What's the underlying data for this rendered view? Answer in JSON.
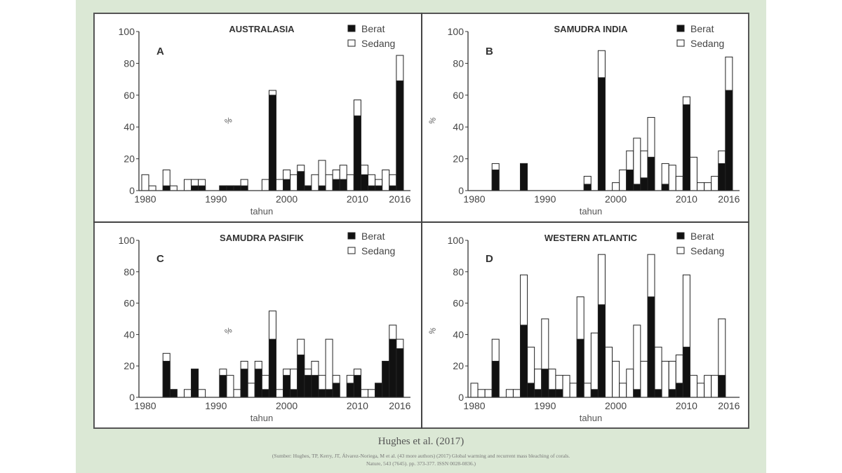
{
  "colors": {
    "severe": "#111111",
    "moderate": "#ffffff",
    "background": "#dbe8d5"
  },
  "caption": "Hughes et al. (2017)",
  "source_line1": "(Sumber: Hughes, TP, Kerry, JT, Álvarez-Noriega, M et al. (43 more authors) (2017) Global warming and recurrent mass bleaching of corals.",
  "source_line2": "Nature, 543 (7645). pp. 373-377. ISSN 0028-0836.)",
  "chart_data": [
    {
      "type": "bar",
      "stacked": true,
      "panel_letter": "A",
      "title": "AUSTRALASIA",
      "xlabel": "tahun",
      "ylabel": "%",
      "ylim": [
        0,
        100
      ],
      "yticks": [
        "0",
        "20",
        "40",
        "60",
        "80",
        "100"
      ],
      "xticks": [
        "1980",
        "1990",
        "2000",
        "2010",
        "2016"
      ],
      "legend": [
        "Berat",
        "Sedang"
      ],
      "legend_position": "top-right",
      "x_start": 1980,
      "berat": [
        0,
        0,
        0,
        3,
        0,
        0,
        0,
        3,
        3,
        0,
        0,
        3,
        3,
        3,
        3,
        0,
        0,
        0,
        60,
        0,
        7,
        0,
        12,
        3,
        0,
        3,
        0,
        7,
        7,
        0,
        47,
        10,
        3,
        3,
        0,
        3,
        69
      ],
      "total": [
        10,
        3,
        0,
        13,
        3,
        0,
        7,
        7,
        7,
        0,
        0,
        3,
        3,
        3,
        7,
        0,
        0,
        7,
        63,
        7,
        13,
        10,
        16,
        3,
        10,
        19,
        10,
        13,
        16,
        10,
        57,
        16,
        10,
        7,
        13,
        10,
        85
      ]
    },
    {
      "type": "bar",
      "stacked": true,
      "panel_letter": "B",
      "title": "SAMUDRA INDIA",
      "xlabel": "tahun",
      "ylabel": "%",
      "ylim": [
        0,
        100
      ],
      "yticks": [
        "0",
        "20",
        "40",
        "60",
        "80",
        "100"
      ],
      "xticks": [
        "1980",
        "1990",
        "2000",
        "2010",
        "2016"
      ],
      "legend": [
        "Berat",
        "Sedang"
      ],
      "legend_position": "top-right",
      "x_start": 1980,
      "berat": [
        0,
        0,
        0,
        13,
        0,
        0,
        0,
        17,
        0,
        0,
        0,
        0,
        0,
        0,
        0,
        0,
        4,
        0,
        71,
        0,
        0,
        0,
        13,
        4,
        8,
        21,
        0,
        4,
        0,
        0,
        54,
        0,
        0,
        0,
        0,
        17,
        63
      ],
      "total": [
        0,
        0,
        0,
        17,
        0,
        0,
        0,
        17,
        0,
        0,
        0,
        0,
        0,
        0,
        0,
        0,
        9,
        0,
        88,
        0,
        5,
        13,
        25,
        33,
        25,
        46,
        0,
        17,
        16,
        9,
        59,
        21,
        5,
        5,
        9,
        25,
        84
      ]
    },
    {
      "type": "bar",
      "stacked": true,
      "panel_letter": "C",
      "title": "SAMUDRA PASIFIK",
      "xlabel": "tahun",
      "ylabel": "%",
      "ylim": [
        0,
        100
      ],
      "yticks": [
        "0",
        "20",
        "40",
        "60",
        "80",
        "100"
      ],
      "xticks": [
        "1980",
        "1990",
        "2000",
        "2010",
        "2016"
      ],
      "legend": [
        "Berat",
        "Sedang"
      ],
      "legend_position": "top-right",
      "x_start": 1980,
      "berat": [
        0,
        0,
        0,
        23,
        5,
        0,
        0,
        18,
        0,
        0,
        0,
        14,
        0,
        0,
        18,
        0,
        18,
        5,
        37,
        0,
        14,
        5,
        27,
        14,
        14,
        5,
        5,
        9,
        0,
        9,
        14,
        0,
        0,
        9,
        23,
        37,
        31
      ],
      "total": [
        0,
        0,
        0,
        28,
        5,
        0,
        5,
        18,
        5,
        0,
        0,
        18,
        14,
        5,
        23,
        9,
        23,
        14,
        55,
        5,
        18,
        18,
        37,
        18,
        23,
        14,
        37,
        14,
        0,
        14,
        18,
        5,
        5,
        9,
        23,
        46,
        37
      ]
    },
    {
      "type": "bar",
      "stacked": true,
      "panel_letter": "D",
      "title": "WESTERN ATLANTIC",
      "xlabel": "tahun",
      "ylabel": "%",
      "ylim": [
        0,
        100
      ],
      "yticks": [
        "0",
        "20",
        "40",
        "60",
        "80",
        "100"
      ],
      "xticks": [
        "1980",
        "1990",
        "2000",
        "2010",
        "2016"
      ],
      "legend": [
        "Berat",
        "Sedang"
      ],
      "legend_position": "top-right",
      "x_start": 1980,
      "berat": [
        0,
        0,
        0,
        23,
        0,
        0,
        0,
        46,
        9,
        5,
        18,
        5,
        5,
        0,
        0,
        37,
        0,
        5,
        59,
        0,
        0,
        0,
        0,
        5,
        0,
        64,
        5,
        0,
        5,
        9,
        32,
        0,
        0,
        0,
        0,
        14,
        0
      ],
      "total": [
        9,
        5,
        5,
        37,
        0,
        5,
        5,
        78,
        32,
        18,
        50,
        18,
        14,
        14,
        9,
        64,
        9,
        41,
        91,
        32,
        23,
        9,
        18,
        46,
        23,
        91,
        32,
        23,
        23,
        27,
        78,
        14,
        9,
        14,
        14,
        50,
        0
      ]
    }
  ]
}
